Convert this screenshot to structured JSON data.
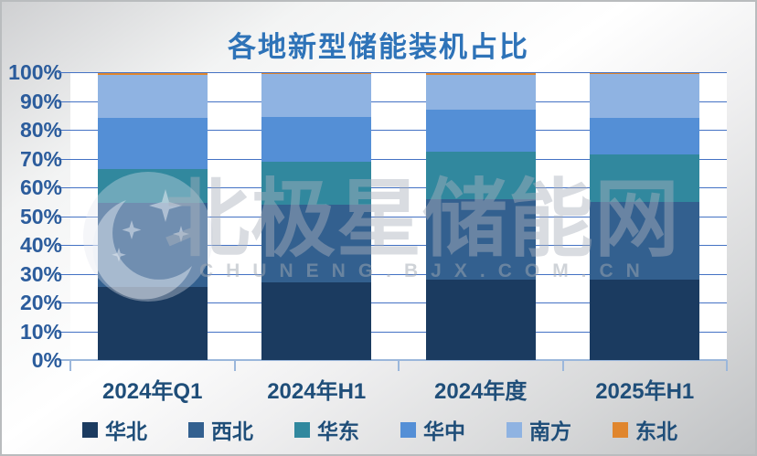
{
  "title": "各地新型储能装机占比",
  "watermark": {
    "brand_text": "北极星储能网",
    "url_text": "CHUNENG.BJX.COM.CN",
    "logo_icon": "moon-and-stars-logo"
  },
  "colors": {
    "title": "#2E73B8",
    "gridline": "#4472C4",
    "axis_line": "#9BB7DB",
    "tick_label": "#2B5C9C",
    "category_label": "#1F4E79",
    "legend_label": "#1F4E79",
    "plot_background": "#FFFFFF"
  },
  "chart_data": {
    "type": "bar",
    "stacked": true,
    "unit": "%",
    "title": "各地新型储能装机占比",
    "categories": [
      "2024年Q1",
      "2024年H1",
      "2024年度",
      "2025年H1"
    ],
    "series": [
      {
        "name": "华北",
        "color": "#1B3B60",
        "values": [
          25.5,
          27.0,
          28.0,
          28.0
        ]
      },
      {
        "name": "西北",
        "color": "#33608F",
        "values": [
          29.0,
          27.0,
          28.0,
          27.0
        ]
      },
      {
        "name": "华东",
        "color": "#31889E",
        "values": [
          12.0,
          15.0,
          16.5,
          16.5
        ]
      },
      {
        "name": "华中",
        "color": "#548FD6",
        "values": [
          17.5,
          15.5,
          14.5,
          12.5
        ]
      },
      {
        "name": "南方",
        "color": "#8FB3E2",
        "values": [
          15.0,
          15.0,
          12.0,
          15.5
        ]
      },
      {
        "name": "东北",
        "color": "#E0862E",
        "values": [
          1.0,
          0.5,
          1.0,
          0.5
        ]
      }
    ],
    "ylim": [
      0,
      100
    ],
    "ytick_step": 10,
    "ytick_suffix": "%",
    "grid": true,
    "legend_position": "bottom"
  }
}
